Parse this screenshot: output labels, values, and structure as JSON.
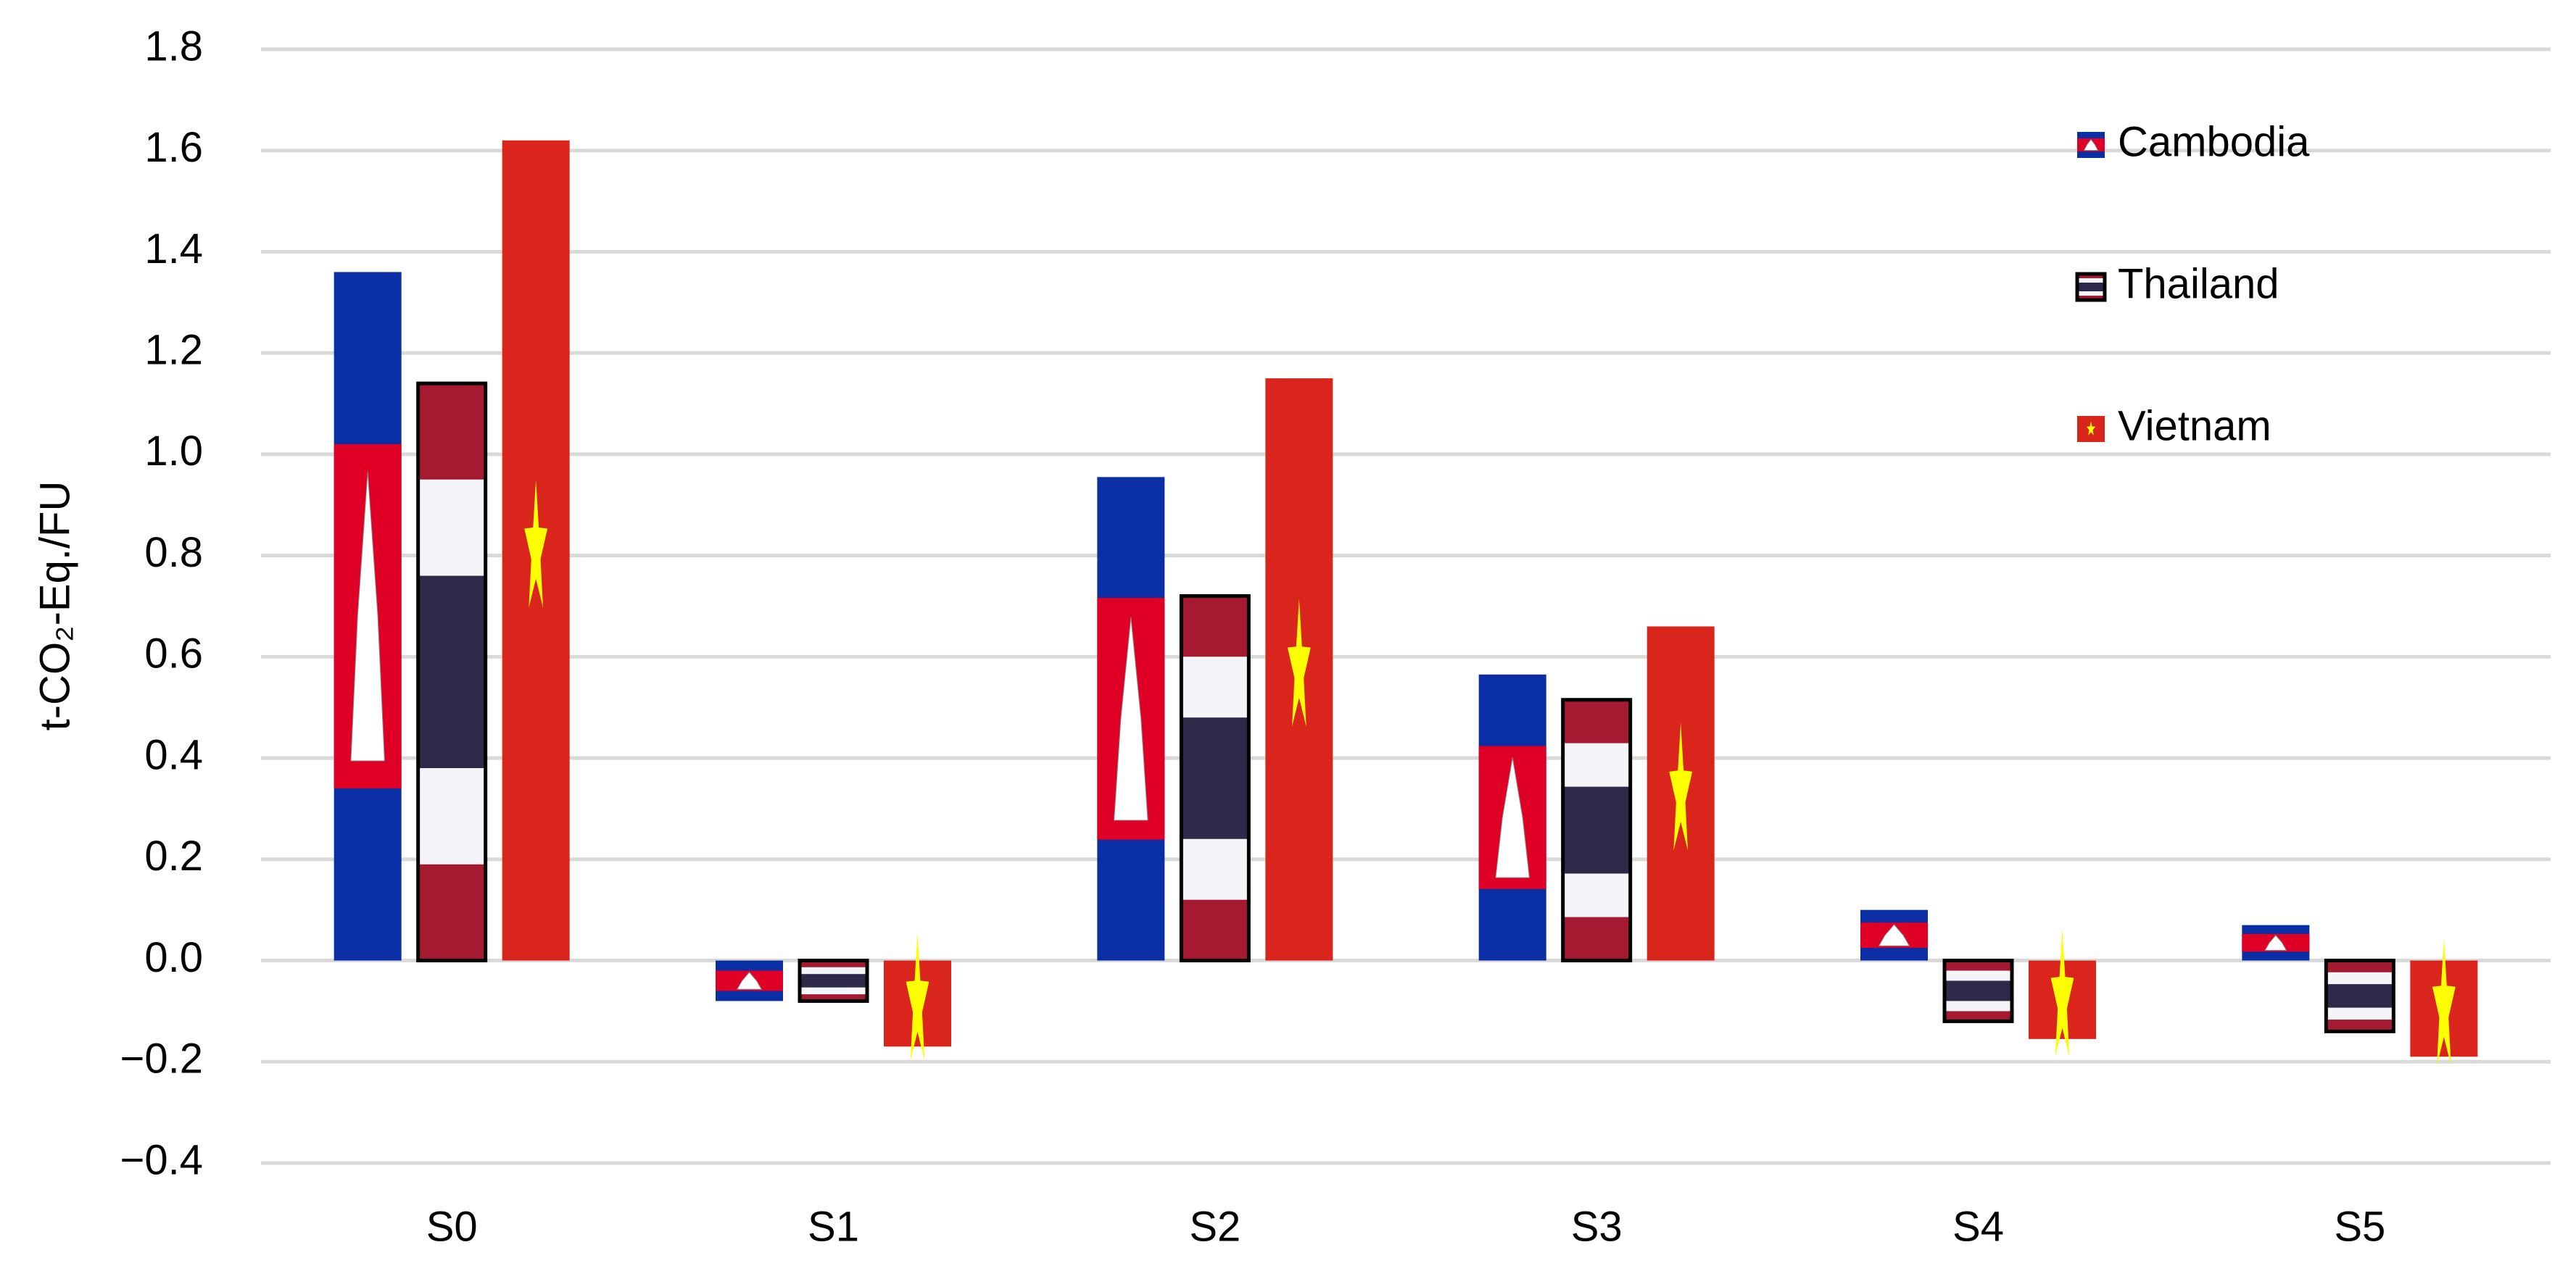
{
  "chart_data": {
    "type": "bar",
    "y_label": "t-CO₂-Eq./FU",
    "categories": [
      "S0",
      "S1",
      "S2",
      "S3",
      "S4",
      "S5"
    ],
    "series": [
      {
        "name": "Cambodia",
        "color": "#0a2ea4",
        "values": [
          1.36,
          -0.08,
          0.955,
          0.565,
          0.1,
          0.07
        ]
      },
      {
        "name": "Thailand",
        "color": "#a51931",
        "values": [
          1.14,
          -0.08,
          0.72,
          0.515,
          -0.12,
          -0.14
        ]
      },
      {
        "name": "Vietnam",
        "color": "#da251d",
        "values": [
          1.62,
          -0.17,
          1.15,
          0.66,
          -0.155,
          -0.19
        ]
      }
    ],
    "ylim": [
      -0.4,
      1.8
    ],
    "yticks": [
      {
        "value": -0.4,
        "label": "−0.4"
      },
      {
        "value": -0.2,
        "label": "−0.2"
      },
      {
        "value": 0,
        "label": "0.0"
      },
      0.2,
      0.4,
      0.6,
      0.8,
      {
        "value": 1,
        "label": "1.0"
      },
      1.2,
      1.4,
      1.6,
      1.8
    ],
    "grid": true,
    "legend": "top-right"
  }
}
